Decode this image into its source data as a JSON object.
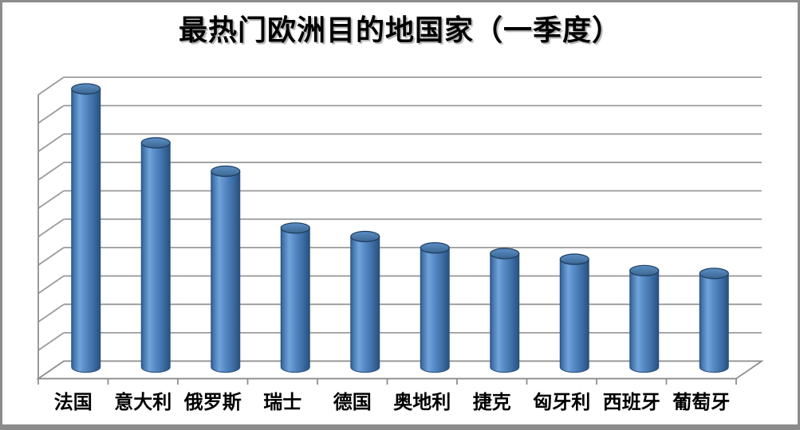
{
  "frame": {
    "background": "#FFFFFF",
    "border_color": "#8C8C8C"
  },
  "chart_data": {
    "type": "bar",
    "subtype": "3d-cylinder-column",
    "title": "最热门欧洲目的地国家（一季度）",
    "categories": [
      "法国",
      "意大利",
      "俄罗斯",
      "瑞士",
      "德国",
      "奥地利",
      "捷克",
      "匈牙利",
      "西班牙",
      "葡萄牙"
    ],
    "series": [
      {
        "name": "最热门欧洲目的地国家",
        "values": [
          9.8,
          7.9,
          6.9,
          4.9,
          4.6,
          4.2,
          4.0,
          3.8,
          3.4,
          3.3
        ]
      }
    ],
    "value_axis": {
      "min": 0,
      "max": 10,
      "major_unit": 1,
      "tick_labels_visible": false
    },
    "category_axis": {
      "tick_labels_visible": true
    },
    "legend_position": "none",
    "gridlines": "horizontal-major",
    "colors": {
      "series_fill": "#4F81BD",
      "series_outline": "#2C5078",
      "gridline": "#9B9B9B",
      "axis_line": "#8F8F8F",
      "title_text": "#000000",
      "label_text": "#000000",
      "wall_fill": "#FFFFFF"
    }
  }
}
